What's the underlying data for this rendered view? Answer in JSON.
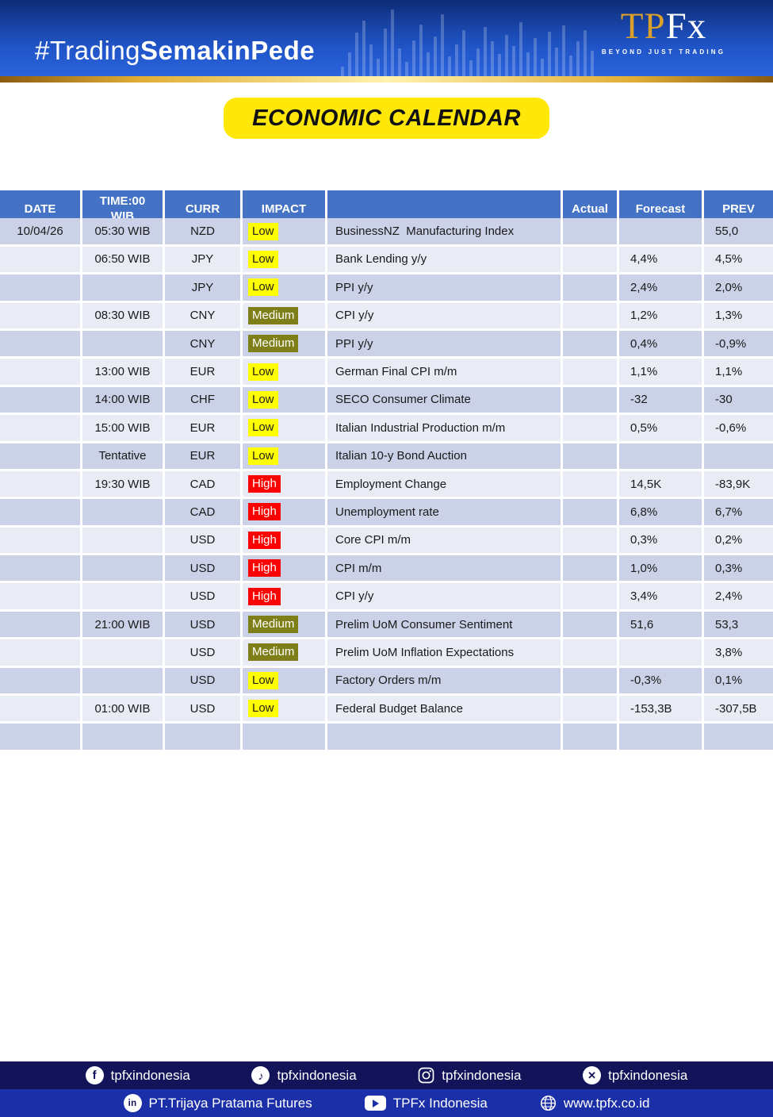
{
  "banner": {
    "hashtag_regular": "#Trading",
    "hashtag_bold": "SemakinPede",
    "logo_tp": "TP",
    "logo_fx": "Fx",
    "logo_tagline": "BEYOND JUST TRADING"
  },
  "title": "ECONOMIC CALENDAR",
  "table": {
    "headers": [
      "DATE",
      "TIME:00 WIB",
      "CURR",
      "IMPACT",
      "",
      "Actual",
      "Forecast",
      "PREV"
    ],
    "rows": [
      {
        "date": "10/04/26",
        "time": "05:30 WIB",
        "curr": "NZD",
        "impact": "Low",
        "event": "BusinessNZ  Manufacturing Index",
        "actual": "",
        "forecast": "",
        "prev": "55,0"
      },
      {
        "date": "",
        "time": "06:50 WIB",
        "curr": "JPY",
        "impact": "Low",
        "event": "Bank Lending y/y",
        "actual": "",
        "forecast": "4,4%",
        "prev": "4,5%"
      },
      {
        "date": "",
        "time": "",
        "curr": "JPY",
        "impact": "Low",
        "event": "PPI y/y",
        "actual": "",
        "forecast": "2,4%",
        "prev": "2,0%"
      },
      {
        "date": "",
        "time": "08:30 WIB",
        "curr": "CNY",
        "impact": "Medium",
        "event": "CPI y/y",
        "actual": "",
        "forecast": "1,2%",
        "prev": "1,3%"
      },
      {
        "date": "",
        "time": "",
        "curr": "CNY",
        "impact": "Medium",
        "event": "PPI y/y",
        "actual": "",
        "forecast": "0,4%",
        "prev": "-0,9%"
      },
      {
        "date": "",
        "time": "13:00 WIB",
        "curr": "EUR",
        "impact": "Low",
        "event": "German Final CPI m/m",
        "actual": "",
        "forecast": "1,1%",
        "prev": "1,1%"
      },
      {
        "date": "",
        "time": "14:00 WIB",
        "curr": "CHF",
        "impact": "Low",
        "event": "SECO Consumer Climate",
        "actual": "",
        "forecast": "-32",
        "prev": "-30"
      },
      {
        "date": "",
        "time": "15:00 WIB",
        "curr": "EUR",
        "impact": "Low",
        "event": "Italian Industrial Production m/m",
        "actual": "",
        "forecast": "0,5%",
        "prev": "-0,6%"
      },
      {
        "date": "",
        "time": "Tentative",
        "curr": "EUR",
        "impact": "Low",
        "event": "Italian 10-y Bond Auction",
        "actual": "",
        "forecast": "",
        "prev": ""
      },
      {
        "date": "",
        "time": "19:30 WIB",
        "curr": "CAD",
        "impact": "High",
        "event": "Employment Change",
        "actual": "",
        "forecast": "14,5K",
        "prev": "-83,9K"
      },
      {
        "date": "",
        "time": "",
        "curr": "CAD",
        "impact": "High",
        "event": "Unemployment rate",
        "actual": "",
        "forecast": "6,8%",
        "prev": "6,7%"
      },
      {
        "date": "",
        "time": "",
        "curr": "USD",
        "impact": "High",
        "event": "Core CPI m/m",
        "actual": "",
        "forecast": "0,3%",
        "prev": "0,2%"
      },
      {
        "date": "",
        "time": "",
        "curr": "USD",
        "impact": "High",
        "event": "CPI m/m",
        "actual": "",
        "forecast": "1,0%",
        "prev": "0,3%"
      },
      {
        "date": "",
        "time": "",
        "curr": "USD",
        "impact": "High",
        "event": "CPI y/y",
        "actual": "",
        "forecast": "3,4%",
        "prev": "2,4%"
      },
      {
        "date": "",
        "time": "21:00 WIB",
        "curr": "USD",
        "impact": "Medium",
        "event": "Prelim UoM Consumer Sentiment",
        "actual": "",
        "forecast": "51,6",
        "prev": "53,3"
      },
      {
        "date": "",
        "time": "",
        "curr": "USD",
        "impact": "Medium",
        "event": "Prelim UoM Inflation Expectations",
        "actual": "",
        "forecast": "",
        "prev": "3,8%"
      },
      {
        "date": "",
        "time": "",
        "curr": "USD",
        "impact": "Low",
        "event": "Factory Orders m/m",
        "actual": "",
        "forecast": "-0,3%",
        "prev": "0,1%"
      },
      {
        "date": "",
        "time": "01:00 WIB",
        "curr": "USD",
        "impact": "Low",
        "event": "Federal Budget Balance",
        "actual": "",
        "forecast": "-153,3B",
        "prev": "-307,5B"
      },
      {
        "date": "",
        "time": "",
        "curr": "",
        "impact": "",
        "event": "",
        "actual": "",
        "forecast": "",
        "prev": ""
      }
    ]
  },
  "footer": {
    "social_row": [
      {
        "icon": "facebook-icon",
        "label": "tpfxindonesia"
      },
      {
        "icon": "tiktok-icon",
        "label": "tpfxindonesia"
      },
      {
        "icon": "instagram-icon",
        "label": "tpfxindonesia"
      },
      {
        "icon": "x-icon",
        "label": "tpfxindonesia"
      }
    ],
    "info_row": [
      {
        "icon": "linkedin-icon",
        "label": "PT.Trijaya Pratama Futures"
      },
      {
        "icon": "youtube-icon",
        "label": "TPFx Indonesia"
      },
      {
        "icon": "globe-icon",
        "label": "www.tpfx.co.id"
      }
    ]
  },
  "colors": {
    "header_blue": "#4472C4",
    "row_dark": "#CBD1E7",
    "row_light": "#E9EBF5",
    "impact_low_bg": "#FFFF00",
    "impact_low_text": "#1F1F1F",
    "impact_medium_bg": "#7F7F19",
    "impact_medium_text": "#FFFFFF",
    "impact_high_bg": "#FF0000",
    "impact_high_text": "#FFFFFF",
    "badge_yellow": "#FFE70A",
    "gold": "#D9A02C",
    "footer_navy": "#13135A",
    "footer_blue": "#1B2FA8"
  }
}
